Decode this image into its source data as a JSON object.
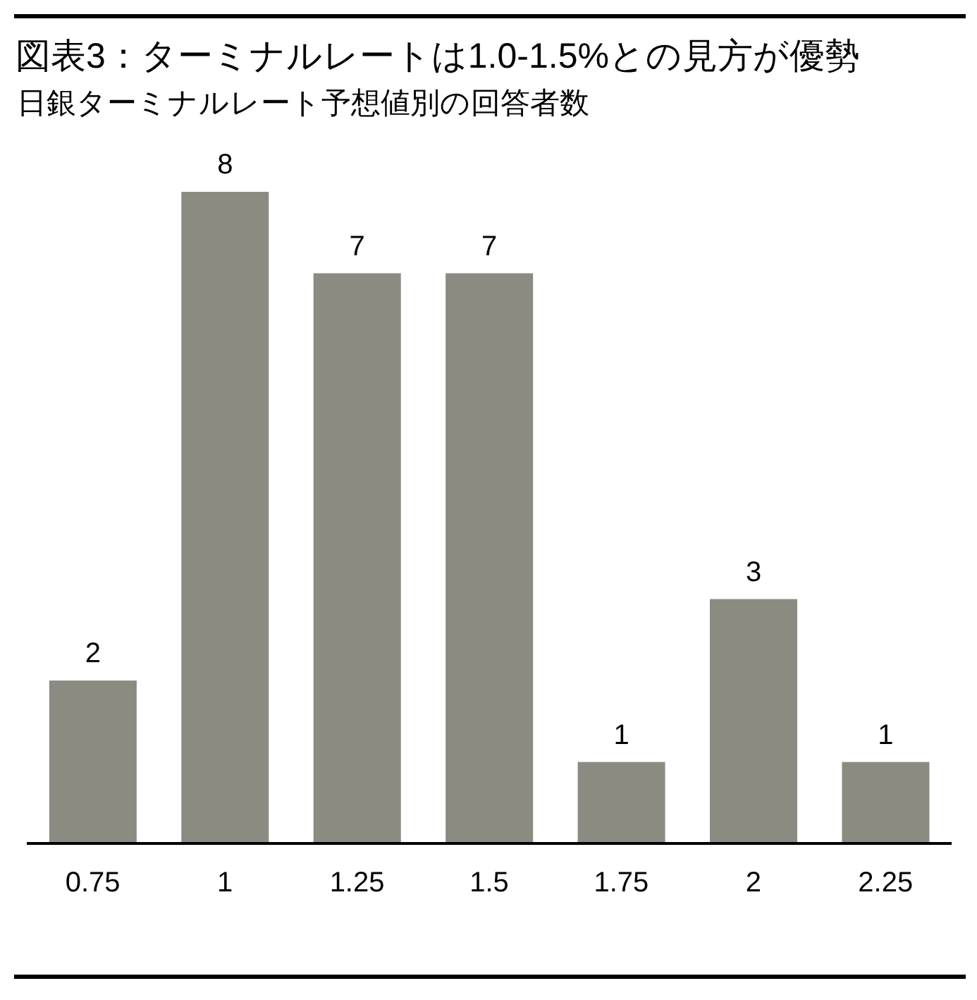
{
  "chart_data": {
    "type": "bar",
    "title": "図表3：ターミナルレートは1.0-1.5%との見方が優勢",
    "subtitle": "日銀ターミナルレート予想値別の回答者数",
    "categories": [
      "0.75",
      "1",
      "1.25",
      "1.5",
      "1.75",
      "2",
      "2.25"
    ],
    "values": [
      2,
      8,
      7,
      7,
      1,
      3,
      1
    ],
    "color": "#8b8b81",
    "data_labels": true,
    "tick_labels": "x"
  }
}
